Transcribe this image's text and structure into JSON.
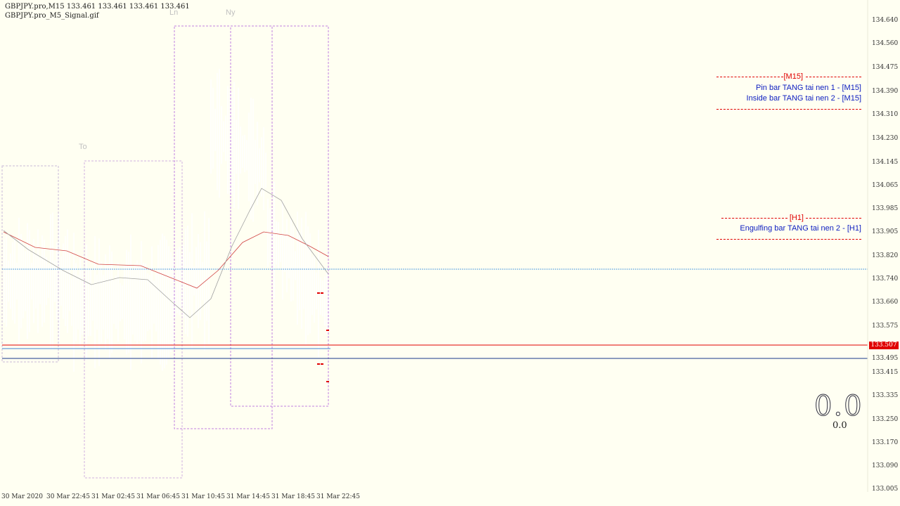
{
  "header": {
    "symbol_line": "GBPJPY.pro,M15  133.461 133.461 133.461 133.461",
    "indicator_line": "GBPJPY.pro_M5_Signal.gif"
  },
  "sessions": {
    "tokyo_label": "To",
    "london_label": "Ln",
    "newyork_label": "Ny"
  },
  "y_axis": {
    "labels": [
      "134.640",
      "134.560",
      "134.475",
      "134.390",
      "134.310",
      "134.230",
      "134.145",
      "134.065",
      "133.985",
      "133.905",
      "133.820",
      "133.740",
      "133.660",
      "133.575",
      "133.495",
      "133.415",
      "133.335",
      "133.250",
      "133.170",
      "133.090",
      "133.005"
    ]
  },
  "x_axis": {
    "labels": [
      "30 Mar 2020",
      "30 Mar 22:45",
      "31 Mar 02:45",
      "31 Mar 06:45",
      "31 Mar 10:45",
      "31 Mar 14:45",
      "31 Mar 18:45",
      "31 Mar 22:45"
    ]
  },
  "price": {
    "current": "133.507",
    "current_color": "#e00000",
    "hline_blue_color": "#4080d0"
  },
  "signals": {
    "m15_header": "[M15]",
    "m15_lines": [
      "Pin bar TANG tai nen 1 - [M15]",
      "Inside bar TANG tai nen 2 - [M15]"
    ],
    "h1_header": "[H1]",
    "h1_lines": [
      "Engulfing bar TANG tai nen 2 - [H1]"
    ]
  },
  "counter": {
    "big": "0.0",
    "small": "0.0"
  },
  "colors": {
    "background": "#fffff2",
    "session_box": "#c080e0",
    "ma_red": "#d04040",
    "ma_gray": "#a0a0a0",
    "signal_red": "#e00000",
    "signal_blue": "#1020c0"
  }
}
